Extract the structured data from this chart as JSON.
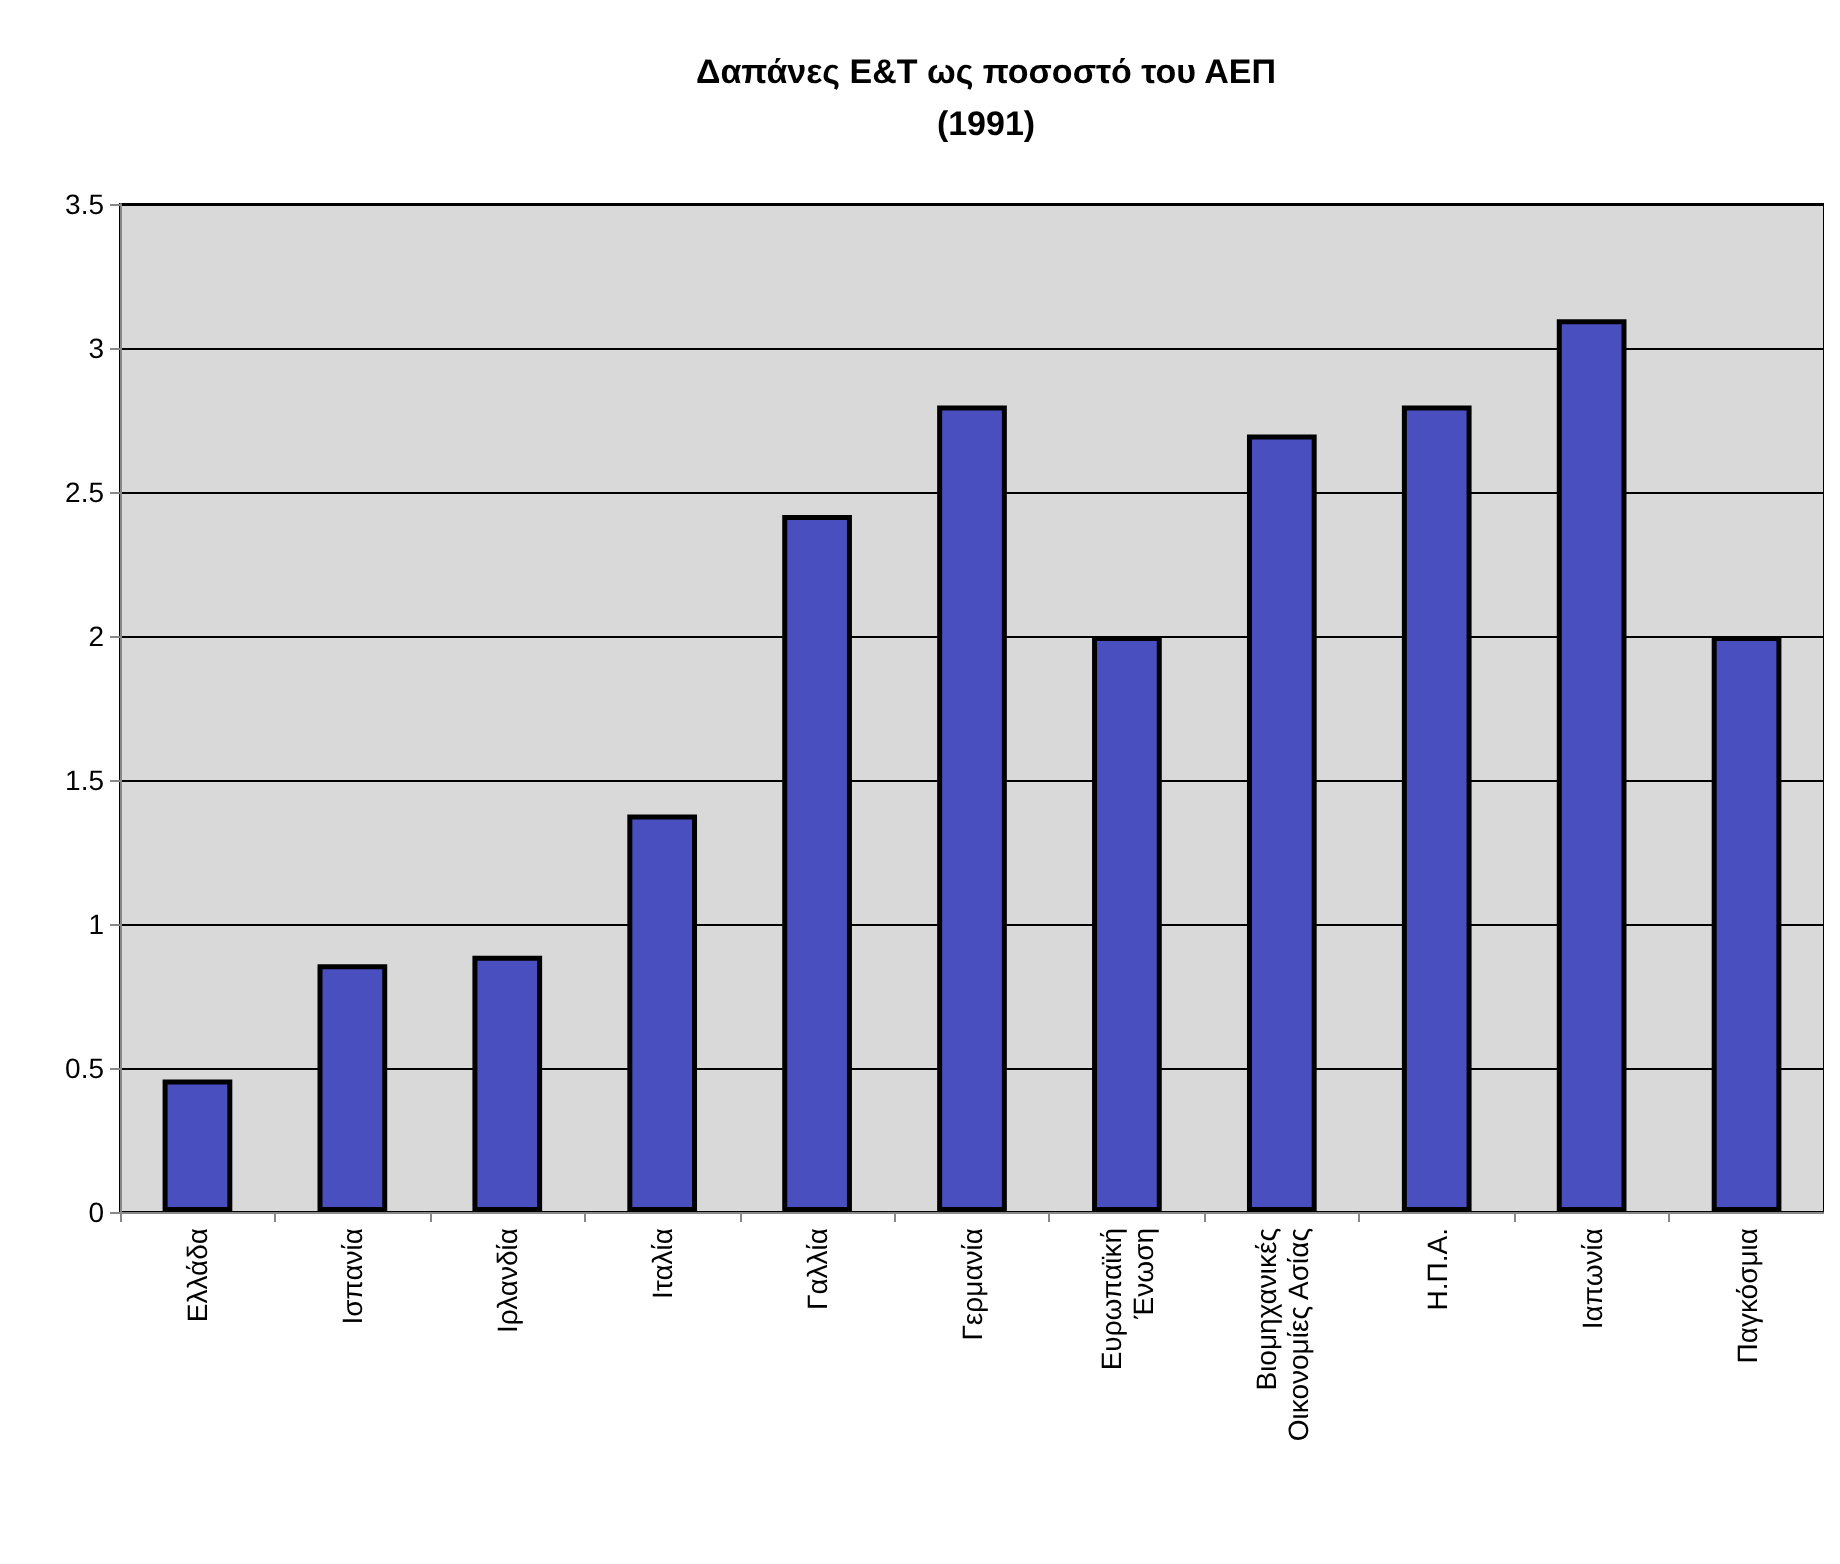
{
  "chart_data": {
    "type": "bar",
    "title": "Δαπάνες Ε&Τ ως ποσοστό του ΑΕΠ\n(1991)",
    "categories": [
      "Ελλάδα",
      "Ισπανία",
      "Ιρλανδία",
      "Ιταλία",
      "Γαλλία",
      "Γερμανία",
      "Ευρωπαϊκή Ένωση",
      "Βιομηχανικές Οικονομίες Ασίας",
      "Η.Π.Α.",
      "Ιαπωνία",
      "Παγκόσμια"
    ],
    "values": [
      0.46,
      0.86,
      0.89,
      1.38,
      2.42,
      2.8,
      2.0,
      2.7,
      2.8,
      3.1,
      2.0
    ],
    "color": "#4a4fc0",
    "ylim": [
      0,
      3.5
    ],
    "yticks": [
      0,
      0.5,
      1,
      1.5,
      2,
      2.5,
      3,
      3.5
    ],
    "grid": "y"
  }
}
